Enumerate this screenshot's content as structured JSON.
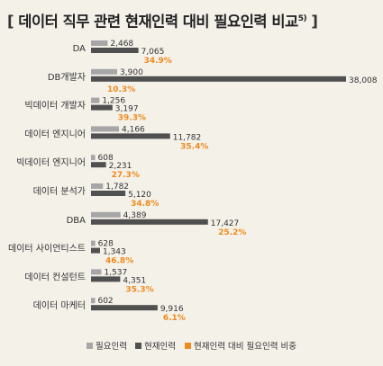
{
  "title": {
    "open_bracket": "[",
    "text": "데이터 직무 관련  현재인력 대비 필요인력 비교",
    "footnote": "5)",
    "close_bracket": "]"
  },
  "colors": {
    "required": "#a6a6a6",
    "current": "#505050",
    "ratio_text": "#f08a1e",
    "background": "#f4f1e9",
    "label": "#333333"
  },
  "chart_data": {
    "type": "bar",
    "orientation": "horizontal",
    "categories": [
      "DA",
      "DB개발자",
      "빅데이터 개발자",
      "데이터 엔지니어",
      "빅데이터 엔지니어",
      "데이터 분석가",
      "DBA",
      "데이터 사이언티스트",
      "데이터 컨설턴트",
      "데이터 마케터"
    ],
    "series": [
      {
        "name": "필요인력",
        "values": [
          2468,
          3900,
          1256,
          4166,
          608,
          1782,
          4389,
          628,
          1537,
          602
        ],
        "labels": [
          "2,468",
          "3,900",
          "1,256",
          "4,166",
          "608",
          "1,782",
          "4,389",
          "628",
          "1,537",
          "602"
        ]
      },
      {
        "name": "현재인력",
        "values": [
          7065,
          38008,
          3197,
          11782,
          2231,
          5120,
          17427,
          1343,
          4351,
          9916
        ],
        "labels": [
          "7,065",
          "38,008",
          "3,197",
          "11,782",
          "2,231",
          "5,120",
          "17,427",
          "1,343",
          "4,351",
          "9,916"
        ]
      },
      {
        "name": "현재인력 대비 필요인력 비중",
        "values": [
          34.9,
          10.3,
          39.3,
          35.4,
          27.3,
          34.8,
          25.2,
          46.8,
          35.3,
          6.1
        ],
        "labels": [
          "34.9%",
          "10.3%",
          "39.3%",
          "35.4%",
          "27.3%",
          "34.8%",
          "25.2%",
          "46.8%",
          "35.3%",
          "6.1%"
        ]
      }
    ],
    "legend": {
      "position": "bottom",
      "items": [
        "필요인력",
        "현재인력",
        "현재인력 대비 필요인력 비중"
      ]
    },
    "xlim": [
      0,
      38008
    ],
    "grid": false
  }
}
